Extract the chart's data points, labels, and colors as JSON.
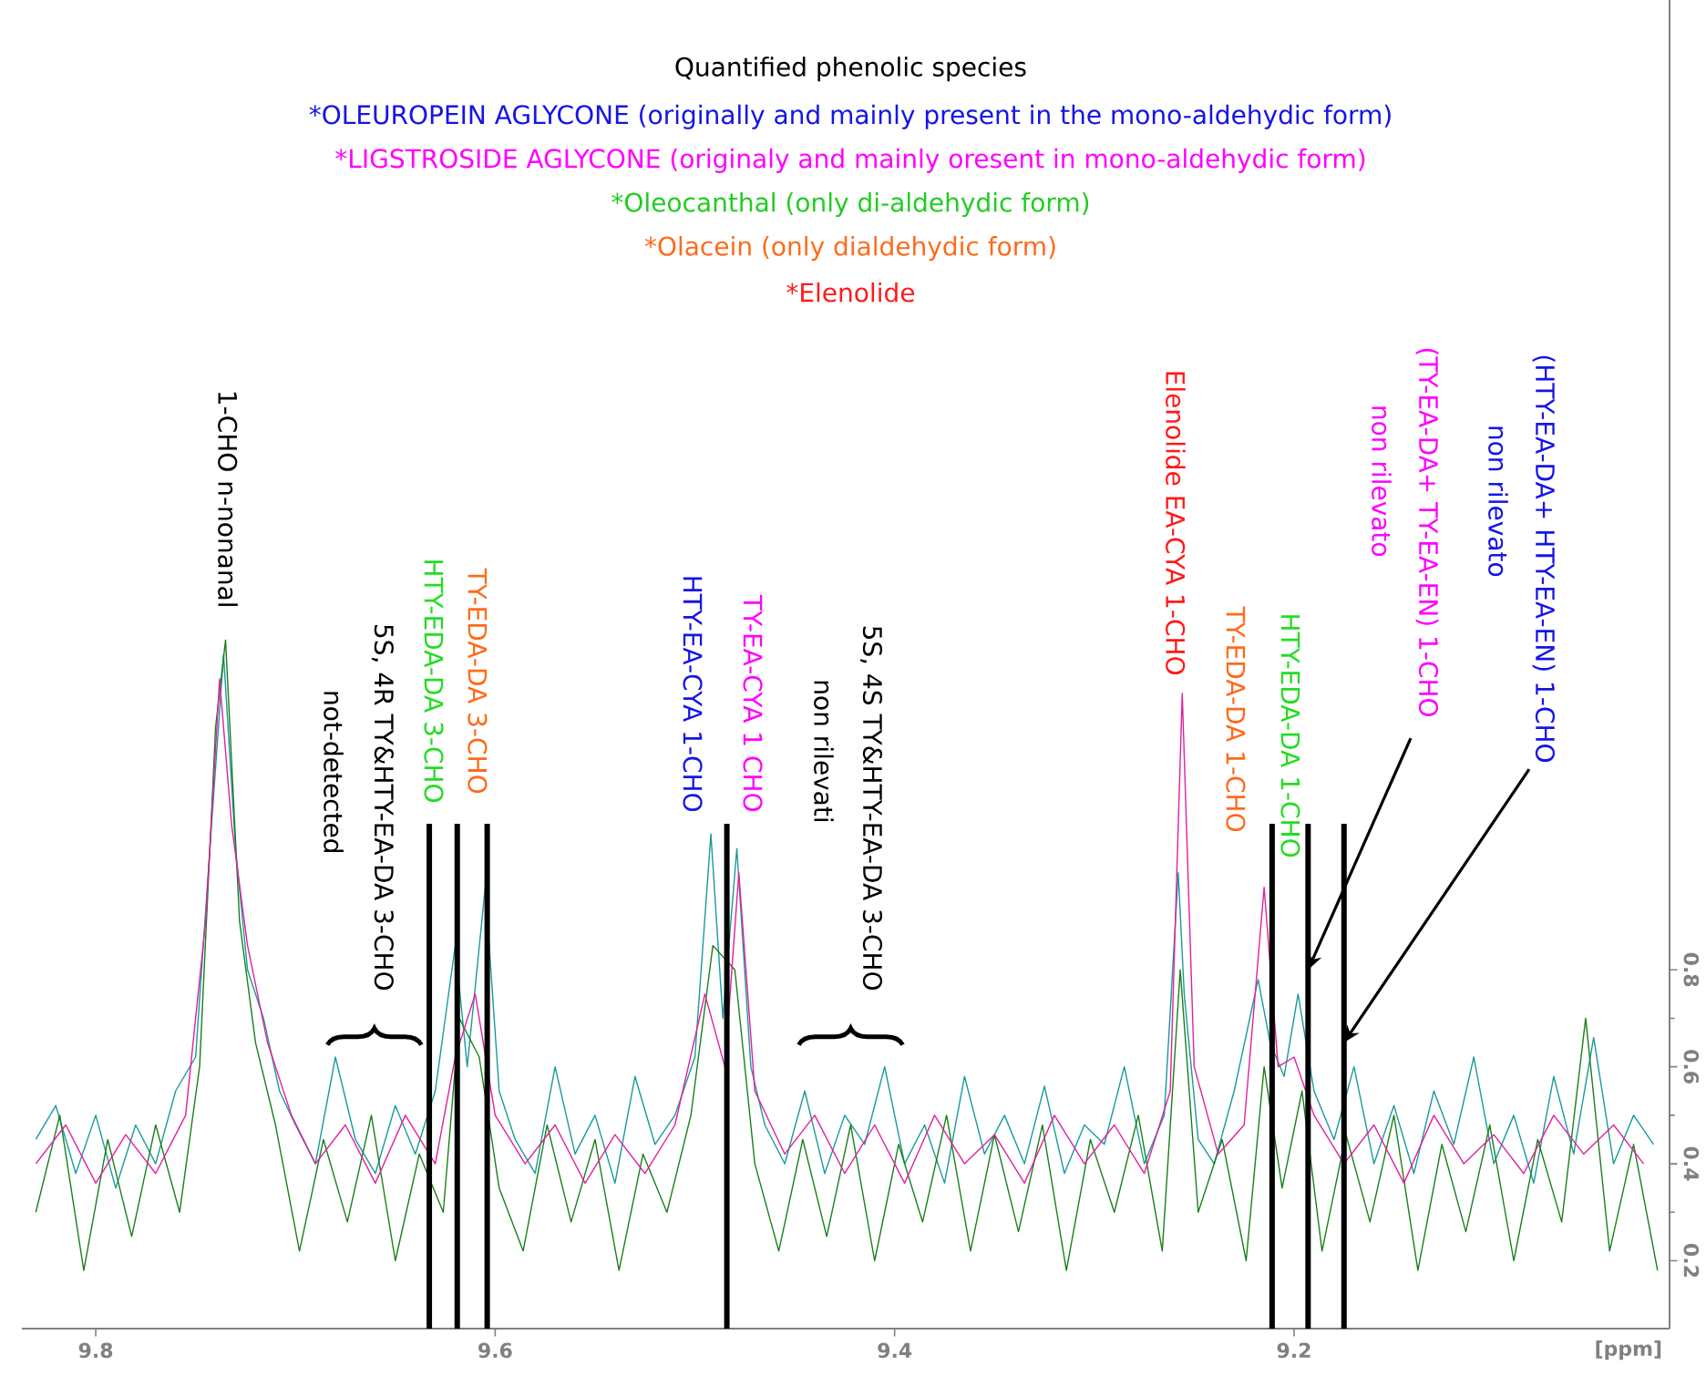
{
  "chart_data": {
    "type": "line",
    "title": "Quantified phenolic species",
    "annotations": [
      "*OLEUROPEIN AGLYCONE (originally and mainly present in the mono-aldehydic form)",
      "*LIGSTROSIDE AGLYCONE (originaly and mainly oresent in mono-aldehydic form)",
      "*Oleocanthal (only di-aldehydic form)",
      "*Olacein (only dialdehydic form)",
      "*Elenolide",
      "1-CHO n-nonanal",
      "not-detected",
      "5S, 4R TY&HTY-EA-DA 3-CHO",
      "HTY-EDA-DA 3-CHO",
      "TY-EDA-DA 3-CHO",
      "HTY-EA-CYA 1-CHO",
      "TY-EA-CYA 1 CHO",
      "non rilevati",
      "5S, 4S TY&HTY-EA-DA 3-CHO",
      "Elenolide EA-CYA 1-CHO",
      "TY-EDA-DA 1-CHO",
      "HTY-EDA-DA 1-CHO",
      "non rilevato",
      {
        "text": "(TY-EA-DA+ TY-EA-EN) 1-CHO",
        "x": 9.193,
        "y": 0.8
      },
      "non rilevato",
      {
        "text": "(HTY-EA-DA+ HTY-EA-EN) 1-CHO",
        "x": 9.175,
        "y": 0.65
      }
    ],
    "xlabel": "[ppm]",
    "xlim": [
      9.837,
      9.012
    ],
    "ylim": [
      0.06,
      2.8
    ],
    "xticks": [
      9.8,
      9.6,
      9.4,
      9.2
    ],
    "yticks": [
      0.2,
      0.4,
      0.6,
      0.8
    ],
    "grid": false,
    "ref_lines": [
      {
        "axis": "x",
        "value": 9.633
      },
      {
        "axis": "x",
        "value": 9.619
      },
      {
        "axis": "x",
        "value": 9.604
      },
      {
        "axis": "x",
        "value": 9.484
      },
      {
        "axis": "x",
        "value": 9.211
      },
      {
        "axis": "x",
        "value": 9.193
      },
      {
        "axis": "x",
        "value": 9.175
      }
    ],
    "series": [
      {
        "color": "#1a9a9a",
        "x": [
          9.83,
          9.82,
          9.81,
          9.8,
          9.79,
          9.78,
          9.77,
          9.76,
          9.75,
          9.742,
          9.736,
          9.73,
          9.724,
          9.716,
          9.708,
          9.7,
          9.69,
          9.68,
          9.67,
          9.66,
          9.65,
          9.64,
          9.63,
          9.62,
          9.614,
          9.605,
          9.598,
          9.59,
          9.58,
          9.57,
          9.56,
          9.55,
          9.54,
          9.53,
          9.52,
          9.51,
          9.5,
          9.492,
          9.486,
          9.479,
          9.472,
          9.465,
          9.455,
          9.445,
          9.435,
          9.425,
          9.415,
          9.405,
          9.395,
          9.385,
          9.375,
          9.365,
          9.355,
          9.345,
          9.335,
          9.325,
          9.315,
          9.305,
          9.295,
          9.285,
          9.275,
          9.265,
          9.258,
          9.255,
          9.248,
          9.24,
          9.23,
          9.218,
          9.212,
          9.205,
          9.198,
          9.19,
          9.18,
          9.17,
          9.16,
          9.15,
          9.14,
          9.13,
          9.12,
          9.11,
          9.1,
          9.09,
          9.08,
          9.07,
          9.06,
          9.05,
          9.04,
          9.03,
          9.02
        ],
        "values": [
          0.45,
          0.52,
          0.38,
          0.5,
          0.35,
          0.48,
          0.4,
          0.55,
          0.62,
          1.1,
          1.45,
          1.05,
          0.8,
          0.7,
          0.55,
          0.48,
          0.4,
          0.62,
          0.45,
          0.38,
          0.52,
          0.42,
          0.55,
          0.85,
          0.6,
          0.97,
          0.55,
          0.45,
          0.38,
          0.6,
          0.42,
          0.5,
          0.36,
          0.58,
          0.44,
          0.5,
          0.62,
          1.08,
          0.7,
          1.05,
          0.6,
          0.48,
          0.4,
          0.55,
          0.38,
          0.5,
          0.44,
          0.6,
          0.4,
          0.48,
          0.36,
          0.58,
          0.42,
          0.5,
          0.4,
          0.56,
          0.38,
          0.48,
          0.44,
          0.6,
          0.4,
          0.5,
          1.0,
          0.75,
          0.45,
          0.4,
          0.55,
          0.78,
          0.65,
          0.58,
          0.75,
          0.55,
          0.45,
          0.6,
          0.4,
          0.52,
          0.38,
          0.55,
          0.44,
          0.62,
          0.4,
          0.5,
          0.36,
          0.58,
          0.42,
          0.66,
          0.4,
          0.5,
          0.44
        ]
      },
      {
        "color": "#1a7f1a",
        "x": [
          9.83,
          9.818,
          9.806,
          9.794,
          9.782,
          9.77,
          9.758,
          9.748,
          9.74,
          9.735,
          9.728,
          9.72,
          9.71,
          9.698,
          9.686,
          9.674,
          9.662,
          9.65,
          9.638,
          9.626,
          9.618,
          9.608,
          9.598,
          9.586,
          9.574,
          9.562,
          9.55,
          9.538,
          9.526,
          9.514,
          9.502,
          9.491,
          9.48,
          9.47,
          9.458,
          9.446,
          9.434,
          9.422,
          9.41,
          9.398,
          9.386,
          9.374,
          9.362,
          9.35,
          9.338,
          9.326,
          9.314,
          9.302,
          9.29,
          9.278,
          9.266,
          9.257,
          9.248,
          9.236,
          9.224,
          9.215,
          9.206,
          9.196,
          9.186,
          9.174,
          9.162,
          9.15,
          9.138,
          9.126,
          9.114,
          9.102,
          9.09,
          9.078,
          9.066,
          9.054,
          9.042,
          9.03,
          9.018
        ],
        "values": [
          0.3,
          0.5,
          0.18,
          0.45,
          0.25,
          0.48,
          0.3,
          0.6,
          1.3,
          1.48,
          0.9,
          0.65,
          0.48,
          0.22,
          0.45,
          0.28,
          0.5,
          0.2,
          0.42,
          0.3,
          0.7,
          0.62,
          0.35,
          0.22,
          0.48,
          0.28,
          0.45,
          0.18,
          0.42,
          0.3,
          0.5,
          0.85,
          0.8,
          0.4,
          0.22,
          0.45,
          0.25,
          0.48,
          0.2,
          0.44,
          0.28,
          0.5,
          0.22,
          0.46,
          0.26,
          0.48,
          0.18,
          0.45,
          0.3,
          0.5,
          0.22,
          0.8,
          0.3,
          0.45,
          0.2,
          0.6,
          0.35,
          0.55,
          0.22,
          0.46,
          0.28,
          0.5,
          0.18,
          0.44,
          0.26,
          0.48,
          0.2,
          0.45,
          0.28,
          0.7,
          0.22,
          0.44,
          0.18
        ]
      },
      {
        "color": "#e020a0",
        "x": [
          9.83,
          9.815,
          9.8,
          9.785,
          9.77,
          9.755,
          9.745,
          9.738,
          9.732,
          9.724,
          9.714,
          9.702,
          9.69,
          9.675,
          9.66,
          9.645,
          9.63,
          9.62,
          9.61,
          9.6,
          9.585,
          9.57,
          9.555,
          9.54,
          9.525,
          9.51,
          9.495,
          9.485,
          9.478,
          9.47,
          9.455,
          9.44,
          9.425,
          9.41,
          9.395,
          9.38,
          9.365,
          9.35,
          9.335,
          9.32,
          9.305,
          9.29,
          9.275,
          9.262,
          9.256,
          9.25,
          9.238,
          9.225,
          9.215,
          9.208,
          9.2,
          9.19,
          9.175,
          9.16,
          9.145,
          9.13,
          9.115,
          9.1,
          9.085,
          9.07,
          9.055,
          9.04,
          9.025
        ],
        "values": [
          0.4,
          0.48,
          0.36,
          0.46,
          0.38,
          0.5,
          0.9,
          1.4,
          1.1,
          0.85,
          0.65,
          0.5,
          0.4,
          0.48,
          0.36,
          0.5,
          0.4,
          0.62,
          0.75,
          0.5,
          0.4,
          0.48,
          0.36,
          0.46,
          0.38,
          0.48,
          0.75,
          0.6,
          1.0,
          0.55,
          0.42,
          0.5,
          0.38,
          0.48,
          0.36,
          0.5,
          0.4,
          0.46,
          0.36,
          0.5,
          0.4,
          0.48,
          0.38,
          0.55,
          1.37,
          0.6,
          0.42,
          0.48,
          0.97,
          0.6,
          0.62,
          0.5,
          0.4,
          0.48,
          0.36,
          0.5,
          0.4,
          0.46,
          0.38,
          0.5,
          0.42,
          0.48,
          0.4
        ]
      }
    ]
  }
}
